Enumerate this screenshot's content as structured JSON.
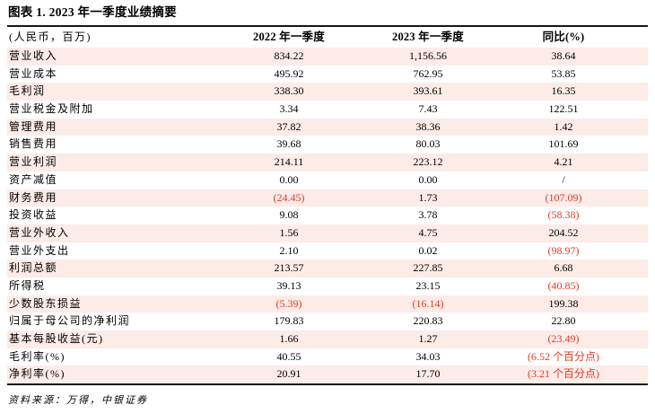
{
  "title": "图表 1. 2023 年一季度业绩摘要",
  "colors": {
    "row_pink": "#fcebe7",
    "negative_red": "#e03a26",
    "border_black": "#161616"
  },
  "table": {
    "columns": [
      "(人民币，百万)",
      "2022 年一季度",
      "2023 年一季度",
      "同比(%)"
    ],
    "rows": [
      {
        "label": "营业收入",
        "values": [
          "834.22",
          "1,156.56",
          "38.64"
        ],
        "red": [
          false,
          false,
          false
        ]
      },
      {
        "label": "营业成本",
        "values": [
          "495.92",
          "762.95",
          "53.85"
        ],
        "red": [
          false,
          false,
          false
        ]
      },
      {
        "label": "毛利润",
        "values": [
          "338.30",
          "393.61",
          "16.35"
        ],
        "red": [
          false,
          false,
          false
        ]
      },
      {
        "label": "营业税金及附加",
        "values": [
          "3.34",
          "7.43",
          "122.51"
        ],
        "red": [
          false,
          false,
          false
        ]
      },
      {
        "label": "管理费用",
        "values": [
          "37.82",
          "38.36",
          "1.42"
        ],
        "red": [
          false,
          false,
          false
        ]
      },
      {
        "label": "销售费用",
        "values": [
          "39.68",
          "80.03",
          "101.69"
        ],
        "red": [
          false,
          false,
          false
        ]
      },
      {
        "label": "营业利润",
        "values": [
          "214.11",
          "223.12",
          "4.21"
        ],
        "red": [
          false,
          false,
          false
        ]
      },
      {
        "label": "资产减值",
        "values": [
          "0.00",
          "0.00",
          "/"
        ],
        "red": [
          false,
          false,
          false
        ]
      },
      {
        "label": "财务费用",
        "values": [
          "(24.45)",
          "1.73",
          "(107.09)"
        ],
        "red": [
          true,
          false,
          true
        ]
      },
      {
        "label": "投资收益",
        "values": [
          "9.08",
          "3.78",
          "(58.38)"
        ],
        "red": [
          false,
          false,
          true
        ]
      },
      {
        "label": "营业外收入",
        "values": [
          "1.56",
          "4.75",
          "204.52"
        ],
        "red": [
          false,
          false,
          false
        ]
      },
      {
        "label": "营业外支出",
        "values": [
          "2.10",
          "0.02",
          "(98.97)"
        ],
        "red": [
          false,
          false,
          true
        ]
      },
      {
        "label": "利润总额",
        "values": [
          "213.57",
          "227.85",
          "6.68"
        ],
        "red": [
          false,
          false,
          false
        ]
      },
      {
        "label": "所得税",
        "values": [
          "39.13",
          "23.15",
          "(40.85)"
        ],
        "red": [
          false,
          false,
          true
        ]
      },
      {
        "label": "少数股东损益",
        "values": [
          "(5.39)",
          "(16.14)",
          "199.38"
        ],
        "red": [
          true,
          true,
          false
        ]
      },
      {
        "label": "归属于母公司的净利润",
        "values": [
          "179.83",
          "220.83",
          "22.80"
        ],
        "red": [
          false,
          false,
          false
        ]
      },
      {
        "label": "基本每股收益(元)",
        "values": [
          "1.66",
          "1.27",
          "(23.49)"
        ],
        "red": [
          false,
          false,
          true
        ]
      },
      {
        "label": "毛利率(%)",
        "values": [
          "40.55",
          "34.03",
          "(6.52 个百分点)"
        ],
        "red": [
          false,
          false,
          true
        ]
      },
      {
        "label": "净利率(%)",
        "values": [
          "20.91",
          "17.70",
          "(3.21 个百分点)"
        ],
        "red": [
          false,
          false,
          true
        ]
      }
    ]
  },
  "footer": {
    "source": "资料来源：万得，中银证券"
  }
}
